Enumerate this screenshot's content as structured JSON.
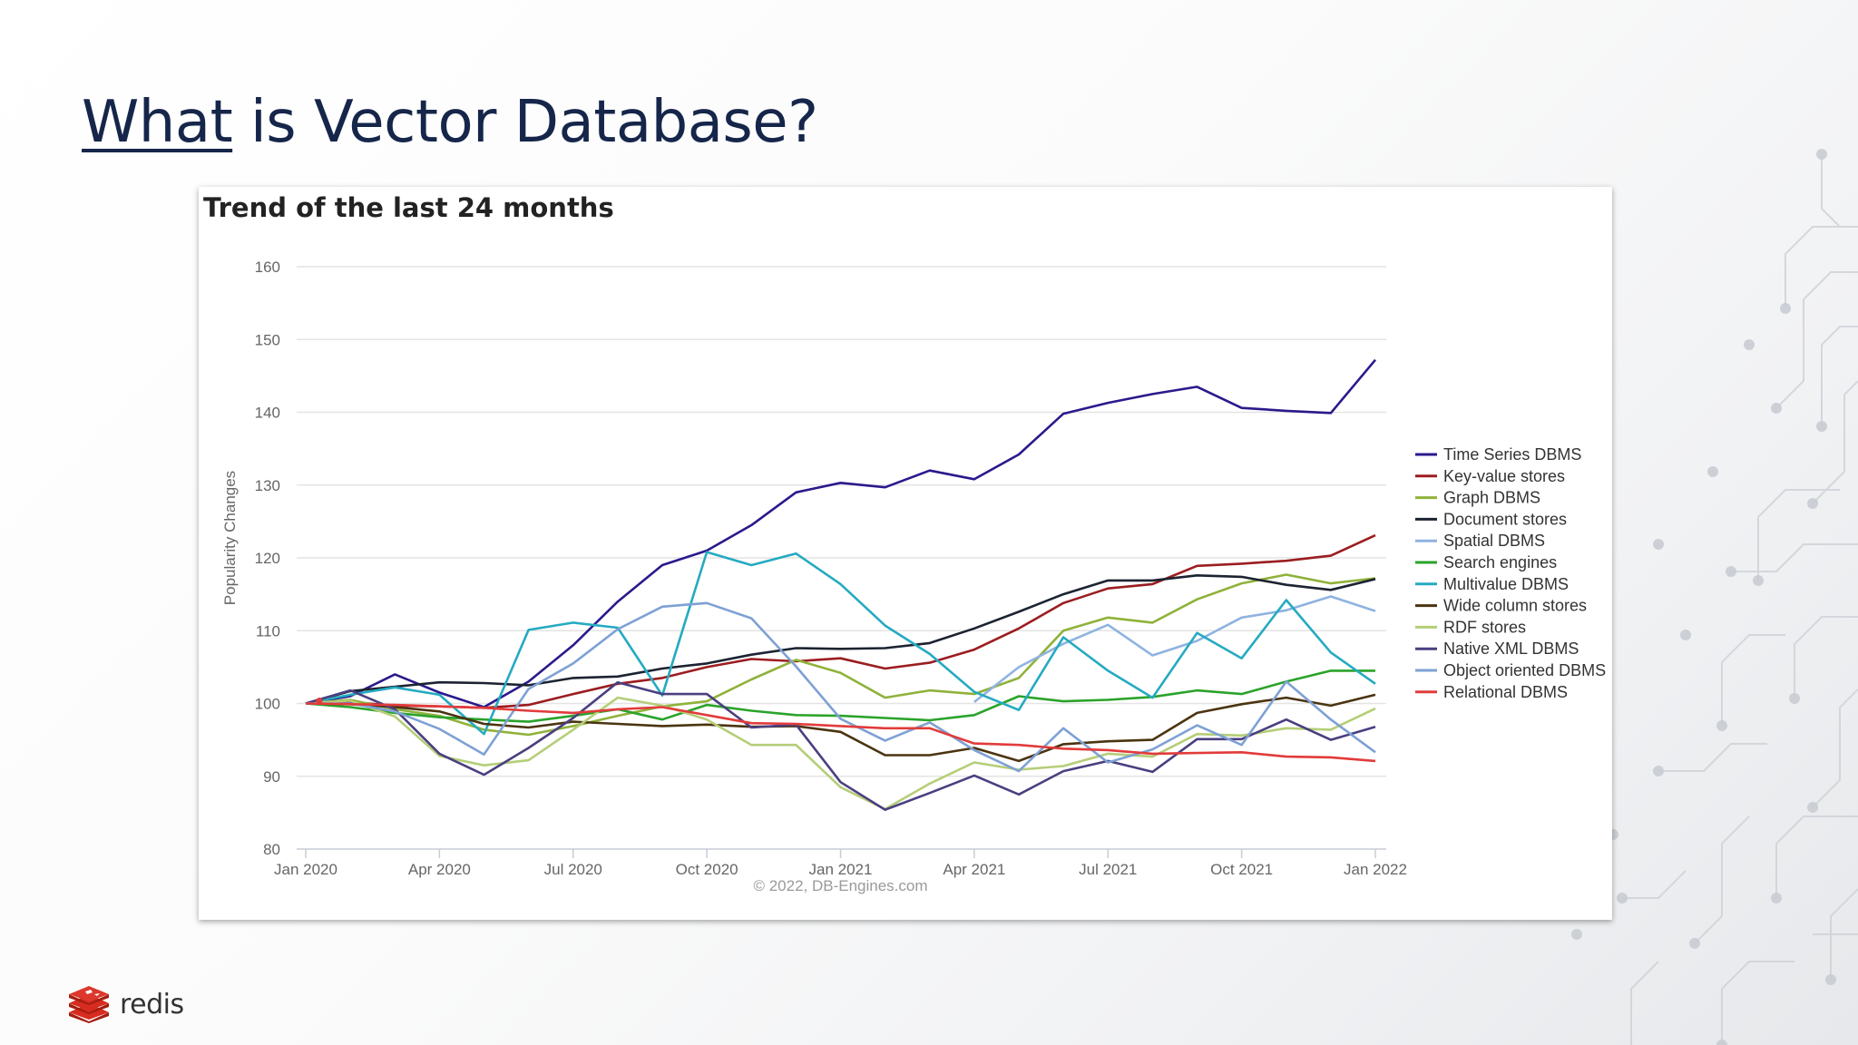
{
  "slide": {
    "title_underlined": "What",
    "title_rest": " is Vector Database?",
    "brand": "redis"
  },
  "colors": {
    "title": "#16264a",
    "brand_red": "#d82c20"
  },
  "chart_data": {
    "type": "line",
    "title": "Trend of the last 24 months",
    "xlabel": "",
    "ylabel": "Popularity Changes",
    "credit": "© 2022, DB-Engines.com",
    "x": [
      "Jan 2020",
      "Feb 2020",
      "Mar 2020",
      "Apr 2020",
      "May 2020",
      "Jun 2020",
      "Jul 2020",
      "Aug 2020",
      "Sep 2020",
      "Oct 2020",
      "Nov 2020",
      "Dec 2020",
      "Jan 2021",
      "Feb 2021",
      "Mar 2021",
      "Apr 2021",
      "May 2021",
      "Jun 2021",
      "Jul 2021",
      "Aug 2021",
      "Sep 2021",
      "Oct 2021",
      "Nov 2021",
      "Dec 2021",
      "Jan 2022"
    ],
    "x_ticks": [
      "Jan 2020",
      "Apr 2020",
      "Jul 2020",
      "Oct 2020",
      "Jan 2021",
      "Apr 2021",
      "Jul 2021",
      "Oct 2021",
      "Jan 2022"
    ],
    "ylim": [
      80,
      160
    ],
    "y_ticks": [
      80,
      90,
      100,
      110,
      120,
      130,
      140,
      150,
      160
    ],
    "grid": true,
    "legend_position": "right",
    "series": [
      {
        "name": "Time Series DBMS",
        "color": "#2a1a8c",
        "values": [
          100,
          101,
          104,
          101.5,
          99.5,
          103,
          108,
          114,
          119,
          121,
          124.5,
          129,
          130.3,
          129.7,
          132,
          130.8,
          134.2,
          139.8,
          141.3,
          142.5,
          143.5,
          140.6,
          140.2,
          139.9,
          147.2
        ]
      },
      {
        "name": "Key-value stores",
        "color": "#9b1d20",
        "values": [
          100,
          100.2,
          99.7,
          99.6,
          99.4,
          99.8,
          101.3,
          102.7,
          103.5,
          105,
          106.1,
          105.8,
          106.2,
          104.8,
          105.6,
          107.4,
          110.3,
          113.8,
          115.8,
          116.4,
          118.9,
          119.2,
          119.6,
          120.3,
          123.1
        ]
      },
      {
        "name": "Graph DBMS",
        "color": "#8fb23a",
        "values": [
          100,
          100.5,
          99.2,
          98.3,
          96.4,
          95.7,
          96.9,
          98.3,
          99.6,
          100.3,
          103.3,
          106,
          104.2,
          100.8,
          101.8,
          101.3,
          103.5,
          110,
          111.8,
          111.1,
          114.3,
          116.5,
          117.7,
          116.5,
          117.2
        ]
      },
      {
        "name": "Document stores",
        "color": "#1c2331",
        "values": [
          100,
          101.7,
          102.3,
          102.9,
          102.8,
          102.5,
          103.5,
          103.7,
          104.8,
          105.5,
          106.7,
          107.6,
          107.5,
          107.6,
          108.3,
          110.3,
          112.6,
          115,
          116.9,
          116.9,
          117.6,
          117.4,
          116.3,
          115.6,
          117.1
        ]
      },
      {
        "name": "Spatial DBMS",
        "color": "#8eb3e0",
        "values": [
          null,
          null,
          null,
          null,
          null,
          null,
          null,
          null,
          null,
          null,
          null,
          null,
          null,
          null,
          null,
          100.2,
          105,
          108.2,
          110.8,
          106.6,
          108.6,
          111.8,
          112.8,
          114.7,
          112.7
        ]
      },
      {
        "name": "Search engines",
        "color": "#2aa32a",
        "values": [
          100,
          99.5,
          98.7,
          98.1,
          97.8,
          97.5,
          98.3,
          99.2,
          97.8,
          99.8,
          99,
          98.4,
          98.3,
          98,
          97.7,
          98.4,
          101,
          100.3,
          100.5,
          100.9,
          101.8,
          101.3,
          103,
          104.5,
          104.5
        ]
      },
      {
        "name": "Multivalue DBMS",
        "color": "#25aac2",
        "values": [
          100,
          101.2,
          102.2,
          101.2,
          95.8,
          110.1,
          111.1,
          110.4,
          101.1,
          120.8,
          119,
          120.6,
          116.4,
          110.7,
          106.8,
          101.6,
          99.1,
          109.1,
          104.5,
          100.8,
          109.7,
          106.2,
          114.2,
          107,
          102.7
        ]
      },
      {
        "name": "Wide column stores",
        "color": "#4b3410",
        "values": [
          100,
          99.9,
          99.5,
          98.9,
          97.2,
          96.7,
          97.5,
          97.2,
          96.9,
          97.1,
          96.8,
          96.9,
          96.1,
          92.9,
          92.9,
          93.9,
          92.1,
          94.4,
          94.8,
          95,
          98.7,
          99.9,
          100.8,
          99.7,
          101.2
        ]
      },
      {
        "name": "RDF stores",
        "color": "#b5ce78",
        "values": [
          100,
          100.4,
          98.2,
          92.8,
          91.5,
          92.2,
          96.4,
          100.8,
          99.7,
          97.8,
          94.3,
          94.3,
          88.5,
          85.5,
          89,
          91.9,
          90.9,
          91.4,
          93.1,
          92.7,
          95.8,
          95.6,
          96.6,
          96.4,
          99.3
        ]
      },
      {
        "name": "Native XML DBMS",
        "color": "#4a3f80",
        "values": [
          100,
          101.8,
          99.2,
          93.1,
          90.2,
          93.9,
          98,
          102.9,
          101.3,
          101.3,
          96.7,
          97.1,
          89.2,
          85.4,
          87.7,
          90.1,
          87.5,
          90.7,
          92.1,
          90.6,
          95.1,
          95.1,
          97.8,
          95,
          96.8
        ]
      },
      {
        "name": "Object oriented DBMS",
        "color": "#7ea1d4",
        "values": [
          100,
          100,
          98.9,
          96.5,
          93,
          102,
          105.5,
          110.2,
          113.3,
          113.8,
          111.7,
          105.1,
          97.9,
          94.9,
          97.4,
          93.6,
          90.7,
          96.6,
          91.9,
          93.7,
          97,
          94.3,
          103,
          97.8,
          93.3
        ]
      },
      {
        "name": "Relational DBMS",
        "color": "#e23b3b",
        "values": [
          100,
          99.9,
          99.8,
          99.6,
          99.4,
          99,
          98.7,
          99.2,
          99.5,
          98.4,
          97.3,
          97.2,
          96.9,
          96.6,
          96.6,
          94.5,
          94.3,
          93.8,
          93.6,
          93.1,
          93.2,
          93.3,
          92.7,
          92.6,
          92.1
        ]
      }
    ]
  }
}
